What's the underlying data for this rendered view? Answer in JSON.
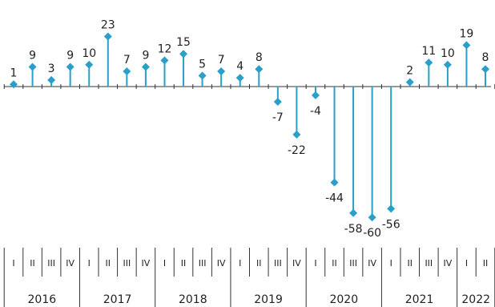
{
  "chart_data": {
    "type": "lollipop",
    "title": "",
    "xlabel": "",
    "ylabel": "",
    "color": "#2a9fc9",
    "grid": false,
    "legend": "none",
    "years": [
      {
        "year": "2016",
        "quarters": [
          "I",
          "II",
          "III",
          "IV"
        ]
      },
      {
        "year": "2017",
        "quarters": [
          "I",
          "II",
          "III",
          "IV"
        ]
      },
      {
        "year": "2018",
        "quarters": [
          "I",
          "II",
          "III",
          "IV"
        ]
      },
      {
        "year": "2019",
        "quarters": [
          "I",
          "II",
          "III",
          "IV"
        ]
      },
      {
        "year": "2020",
        "quarters": [
          "I",
          "II",
          "III",
          "IV"
        ]
      },
      {
        "year": "2021",
        "quarters": [
          "I",
          "II",
          "III",
          "IV"
        ]
      },
      {
        "year": "2022",
        "quarters": [
          "I",
          "II"
        ]
      }
    ],
    "values": [
      1,
      9,
      3,
      9,
      10,
      23,
      7,
      9,
      12,
      15,
      5,
      7,
      4,
      8,
      -7,
      -22,
      -4,
      -44,
      -58,
      -60,
      -56,
      2,
      11,
      10,
      19,
      8
    ],
    "ylim": [
      -60,
      23
    ]
  }
}
